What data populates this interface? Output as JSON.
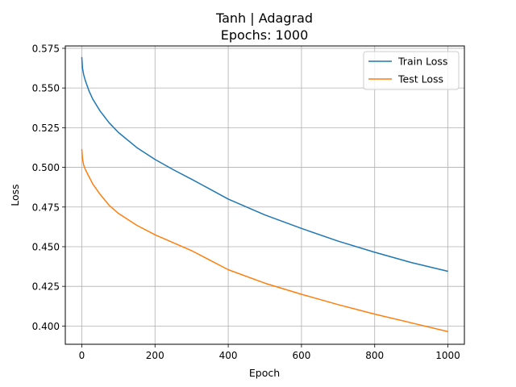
{
  "chart_data": {
    "type": "line",
    "title": "Tanh | Adagrad",
    "subtitle": "Epochs: 1000",
    "xlabel": "Epoch",
    "ylabel": "Loss",
    "xlim": [
      -45,
      1045
    ],
    "ylim": [
      0.3885,
      0.5765
    ],
    "xticks": [
      0,
      200,
      400,
      600,
      800,
      1000
    ],
    "yticks": [
      0.4,
      0.425,
      0.45,
      0.475,
      0.5,
      0.525,
      0.55,
      0.575
    ],
    "ytick_labels": [
      "0.400",
      "0.425",
      "0.450",
      "0.475",
      "0.500",
      "0.525",
      "0.550",
      "0.575"
    ],
    "grid": true,
    "legend_position": "top-right",
    "series": [
      {
        "name": "Train Loss",
        "color": "#1f77b4",
        "x": [
          0,
          2,
          5,
          10,
          20,
          30,
          50,
          75,
          100,
          150,
          200,
          250,
          300,
          400,
          500,
          600,
          700,
          800,
          900,
          1000
        ],
        "y": [
          0.5695,
          0.5625,
          0.5585,
          0.5545,
          0.548,
          0.543,
          0.5355,
          0.528,
          0.522,
          0.5125,
          0.505,
          0.4985,
          0.4925,
          0.48,
          0.47,
          0.4615,
          0.4535,
          0.4465,
          0.44,
          0.4345
        ]
      },
      {
        "name": "Test Loss",
        "color": "#ff7f0e",
        "x": [
          0,
          2,
          5,
          10,
          20,
          30,
          50,
          75,
          100,
          150,
          200,
          250,
          300,
          400,
          500,
          600,
          700,
          800,
          900,
          1000
        ],
        "y": [
          0.5115,
          0.5055,
          0.5015,
          0.4985,
          0.494,
          0.4895,
          0.483,
          0.476,
          0.471,
          0.4635,
          0.4575,
          0.4525,
          0.4475,
          0.4355,
          0.427,
          0.42,
          0.4135,
          0.4075,
          0.402,
          0.3965
        ]
      }
    ]
  }
}
